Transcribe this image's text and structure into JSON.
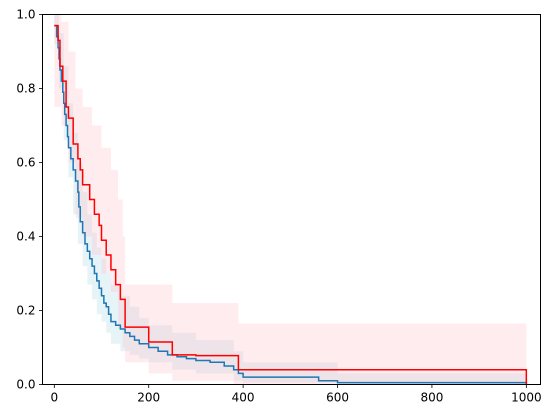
{
  "chart_data": {
    "type": "line",
    "title": "",
    "xlabel": "",
    "ylabel": "",
    "xlim": [
      -25,
      1030
    ],
    "ylim": [
      0,
      1
    ],
    "x_ticks": [
      0,
      200,
      400,
      600,
      800,
      1000
    ],
    "x_tick_labels": [
      "0",
      "200",
      "400",
      "600",
      "800",
      "1000"
    ],
    "y_ticks": [
      0.0,
      0.2,
      0.4,
      0.6,
      0.8,
      1.0
    ],
    "y_tick_labels": [
      "0.0",
      "0.2",
      "0.4",
      "0.6",
      "0.8",
      "1.0"
    ],
    "grid": false,
    "series": [
      {
        "color": "#1f77b4",
        "band_color": "#add8e6",
        "step_x": [
          0,
          5,
          8,
          10,
          12,
          15,
          18,
          20,
          22,
          25,
          28,
          30,
          35,
          40,
          45,
          50,
          52,
          55,
          60,
          65,
          70,
          75,
          80,
          85,
          90,
          95,
          100,
          105,
          110,
          115,
          120,
          130,
          140,
          150,
          160,
          170,
          180,
          190,
          200,
          220,
          240,
          260,
          280,
          300,
          330,
          360,
          380,
          390,
          400,
          560,
          600,
          1000
        ],
        "step_y": [
          0.97,
          0.94,
          0.91,
          0.88,
          0.85,
          0.82,
          0.79,
          0.76,
          0.73,
          0.7,
          0.67,
          0.64,
          0.61,
          0.58,
          0.55,
          0.52,
          0.48,
          0.44,
          0.41,
          0.38,
          0.36,
          0.34,
          0.32,
          0.3,
          0.28,
          0.26,
          0.24,
          0.22,
          0.21,
          0.19,
          0.17,
          0.16,
          0.15,
          0.14,
          0.13,
          0.12,
          0.11,
          0.11,
          0.1,
          0.09,
          0.08,
          0.075,
          0.07,
          0.065,
          0.06,
          0.05,
          0.04,
          0.03,
          0.02,
          0.01,
          0.005,
          0.0
        ],
        "band_x": [
          0,
          10,
          20,
          30,
          40,
          50,
          60,
          70,
          80,
          90,
          100,
          110,
          120,
          140,
          160,
          180,
          200,
          250,
          300,
          380,
          400,
          600,
          1000
        ],
        "band_lower": [
          0.92,
          0.8,
          0.66,
          0.56,
          0.46,
          0.38,
          0.32,
          0.27,
          0.23,
          0.19,
          0.17,
          0.14,
          0.11,
          0.09,
          0.08,
          0.07,
          0.06,
          0.04,
          0.03,
          0.01,
          0.005,
          0.0,
          0.0
        ],
        "band_upper": [
          1.0,
          0.95,
          0.86,
          0.76,
          0.68,
          0.6,
          0.52,
          0.46,
          0.41,
          0.37,
          0.34,
          0.3,
          0.27,
          0.24,
          0.21,
          0.18,
          0.16,
          0.14,
          0.12,
          0.09,
          0.06,
          0.03,
          0.02
        ]
      },
      {
        "color": "#ff0000",
        "band_color": "#ffc0cb",
        "step_x": [
          0,
          8,
          12,
          18,
          25,
          30,
          40,
          50,
          55,
          60,
          75,
          85,
          95,
          100,
          110,
          120,
          130,
          140,
          150,
          200,
          250,
          300,
          380,
          390,
          1000
        ],
        "step_y": [
          0.97,
          0.93,
          0.86,
          0.82,
          0.75,
          0.72,
          0.65,
          0.61,
          0.58,
          0.54,
          0.5,
          0.46,
          0.43,
          0.39,
          0.35,
          0.31,
          0.27,
          0.23,
          0.155,
          0.115,
          0.08,
          0.078,
          0.078,
          0.04,
          0.0
        ],
        "band_x": [
          0,
          15,
          30,
          45,
          60,
          80,
          100,
          120,
          135,
          145,
          150,
          200,
          250,
          380,
          390,
          1000
        ],
        "band_lower": [
          0.75,
          0.7,
          0.6,
          0.45,
          0.4,
          0.35,
          0.3,
          0.25,
          0.15,
          0.1,
          0.06,
          0.03,
          0.01,
          0.0,
          0.0,
          0.0
        ],
        "band_upper": [
          1.0,
          0.98,
          0.9,
          0.8,
          0.75,
          0.7,
          0.64,
          0.58,
          0.5,
          0.4,
          0.27,
          0.27,
          0.22,
          0.22,
          0.165,
          0.165
        ]
      }
    ]
  }
}
